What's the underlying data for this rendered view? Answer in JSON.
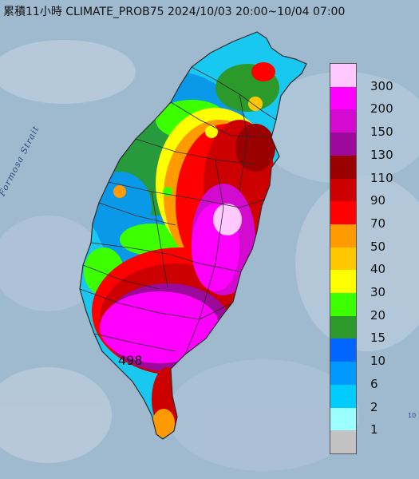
{
  "title": "累積11小時 CLIMATE_PROB75 2024/10/03 20:00~10/04 07:00",
  "strait_label": "Formosa Strait",
  "max_value_label": "498",
  "edge_label": "10",
  "legend": [
    {
      "label": "300",
      "color": "#ffc8ff"
    },
    {
      "label": "200",
      "color": "#ff00ff"
    },
    {
      "label": "150",
      "color": "#d30ad0"
    },
    {
      "label": "130",
      "color": "#9b0a9b"
    },
    {
      "label": "110",
      "color": "#9a0000"
    },
    {
      "label": "90",
      "color": "#cc0000"
    },
    {
      "label": "70",
      "color": "#ff0000"
    },
    {
      "label": "50",
      "color": "#ff9a00"
    },
    {
      "label": "40",
      "color": "#ffc700"
    },
    {
      "label": "30",
      "color": "#ffff00"
    },
    {
      "label": "20",
      "color": "#3cff00"
    },
    {
      "label": "15",
      "color": "#2b9a2b"
    },
    {
      "label": "10",
      "color": "#0066ff"
    },
    {
      "label": "6",
      "color": "#0099ff"
    },
    {
      "label": "2",
      "color": "#00ccff"
    },
    {
      "label": "1",
      "color": "#9bffff"
    },
    {
      "label": "",
      "color": "#c2c2c2"
    }
  ],
  "colors": {
    "sea": "#9fb9cf",
    "land_outline": "#2a2a2a"
  }
}
